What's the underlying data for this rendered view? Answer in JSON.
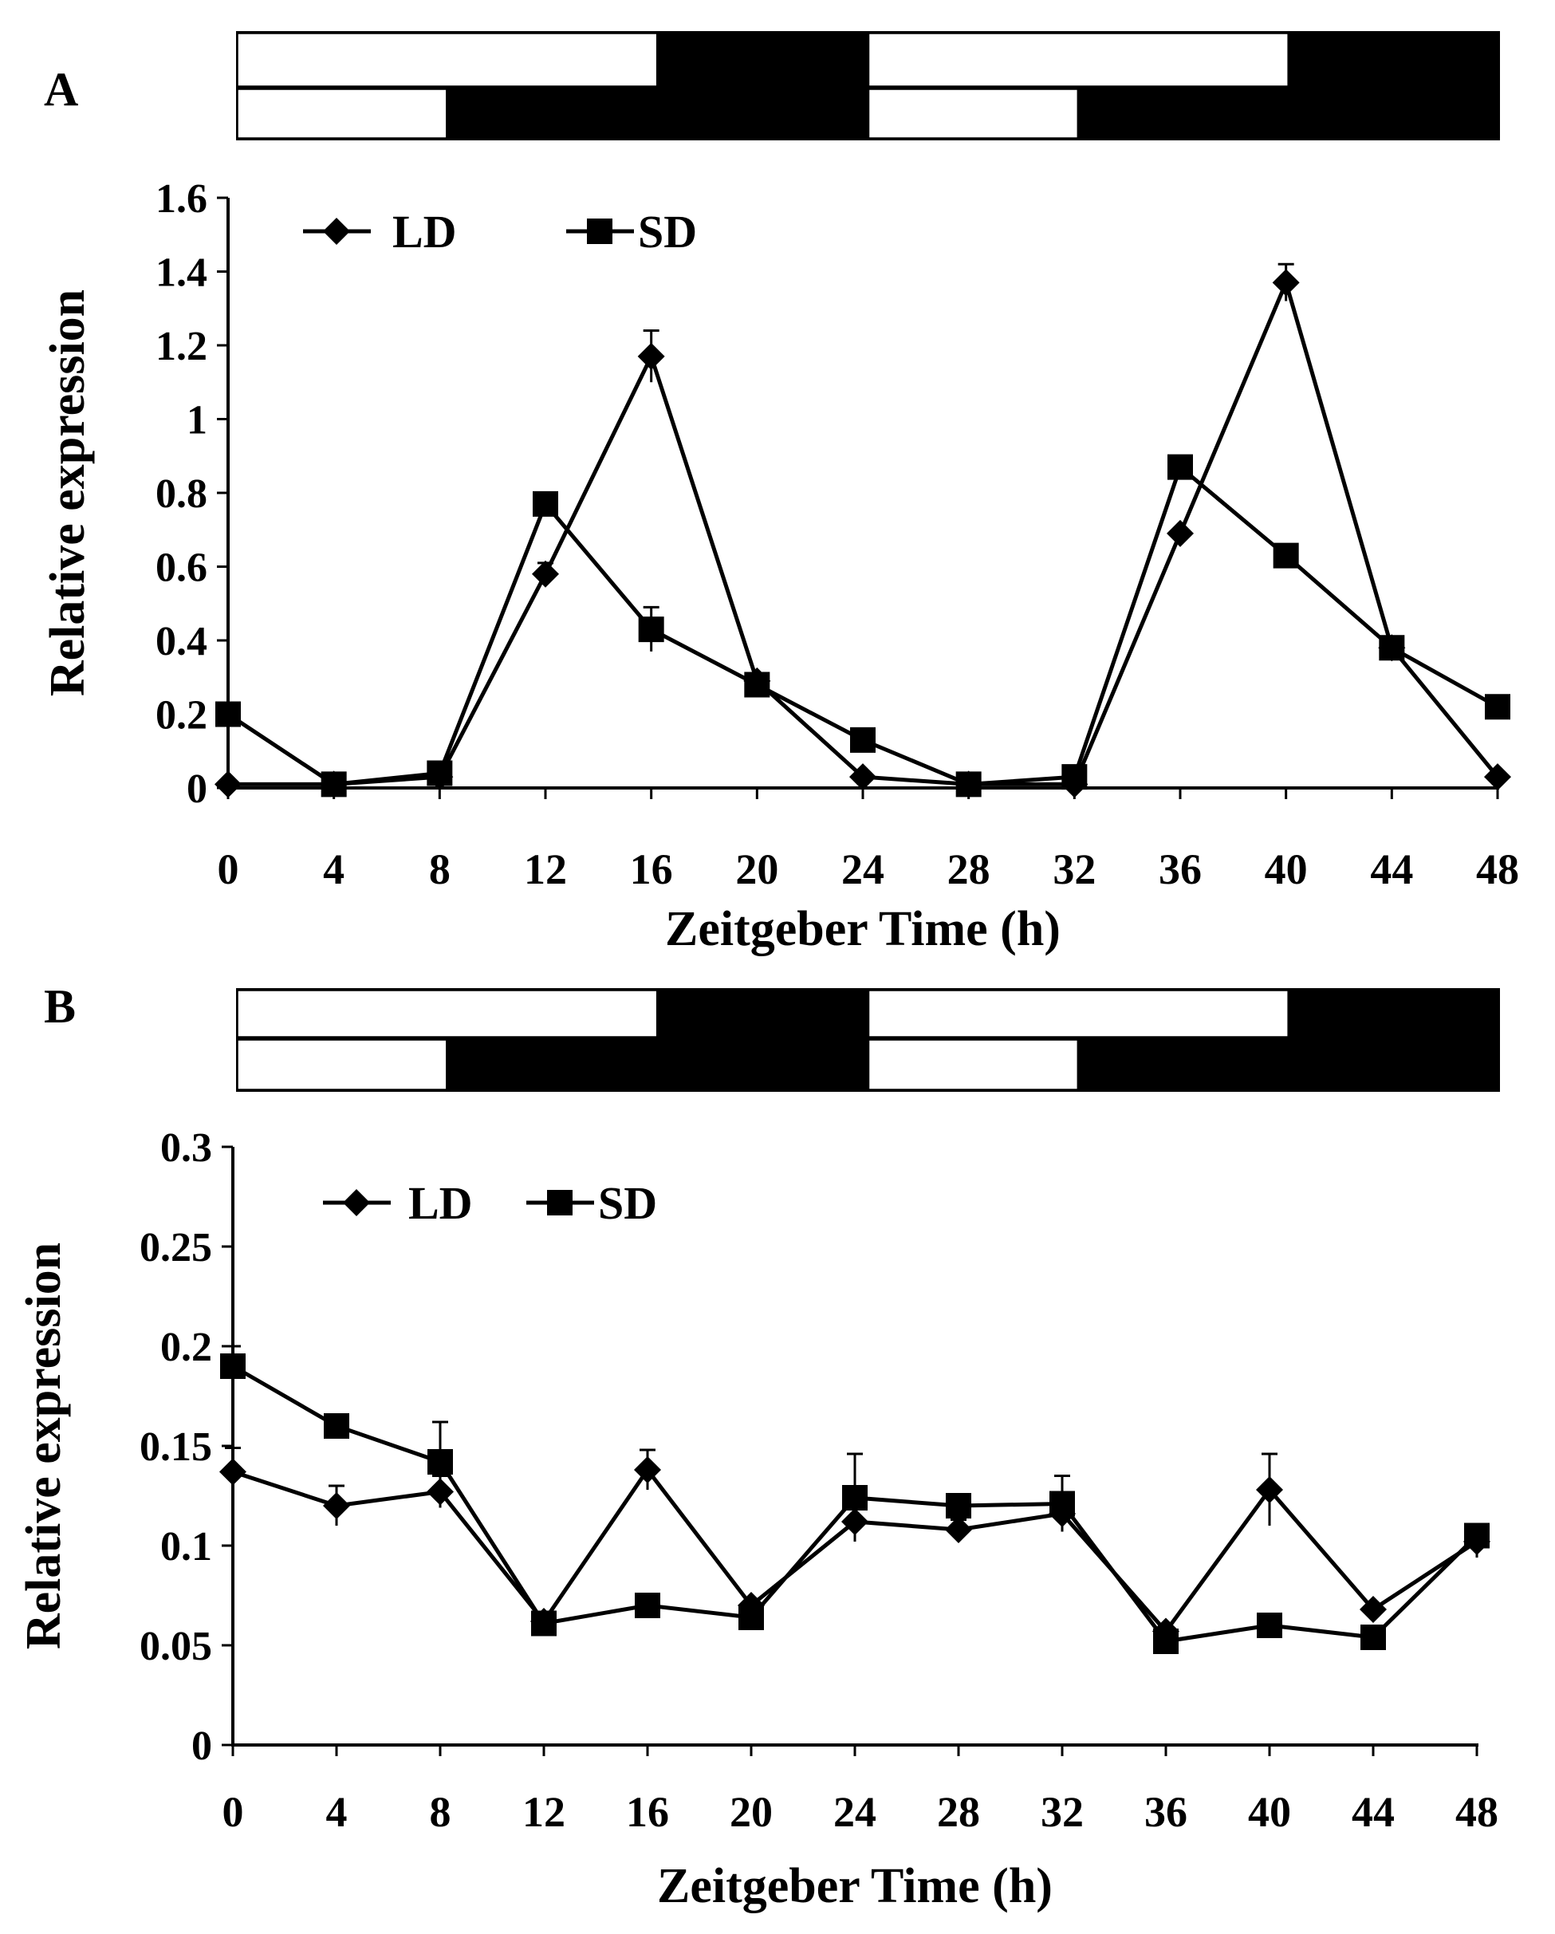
{
  "chart_data": [
    {
      "panel_label": "A",
      "type": "line",
      "xlabel": "Zeitgeber Time (h)",
      "ylabel": "Relative expression",
      "x": [
        0,
        4,
        8,
        12,
        16,
        20,
        24,
        28,
        32,
        36,
        40,
        44,
        48
      ],
      "xticks": [
        "0",
        "4",
        "8",
        "12",
        "16",
        "20",
        "24",
        "28",
        "32",
        "36",
        "40",
        "44",
        "48"
      ],
      "xlim": [
        0,
        48
      ],
      "ylim": [
        0,
        1.6
      ],
      "yticks": [
        "0",
        "0.2",
        "0.4",
        "0.6",
        "0.8",
        "1",
        "1.2",
        "1.4",
        "1.6"
      ],
      "series": [
        {
          "name": "LD",
          "marker": "diamond",
          "values": [
            0.01,
            0.01,
            0.03,
            0.58,
            1.17,
            0.29,
            0.03,
            0.01,
            0.01,
            0.69,
            1.37,
            0.38,
            0.03
          ],
          "errors": [
            0,
            0,
            0,
            0.03,
            0.07,
            0,
            0,
            0,
            0,
            0,
            0.05,
            0,
            0
          ]
        },
        {
          "name": "SD",
          "marker": "square",
          "values": [
            0.2,
            0.01,
            0.04,
            0.77,
            0.43,
            0.28,
            0.13,
            0.01,
            0.03,
            0.87,
            0.63,
            0.38,
            0.22
          ],
          "errors": [
            0,
            0,
            0,
            0,
            0.06,
            0,
            0,
            0,
            0,
            0,
            0,
            0,
            0
          ]
        }
      ],
      "photoperiod_bars": [
        {
          "name": "LD",
          "light_fraction": [
            [
              0,
              16
            ],
            [
              24,
              40
            ]
          ]
        },
        {
          "name": "SD",
          "light_fraction": [
            [
              0,
              8
            ],
            [
              24,
              32
            ]
          ]
        }
      ]
    },
    {
      "panel_label": "B",
      "type": "line",
      "xlabel": "Zeitgeber Time (h)",
      "ylabel": "Relative expression",
      "x": [
        0,
        4,
        8,
        12,
        16,
        20,
        24,
        28,
        32,
        36,
        40,
        44,
        48
      ],
      "xticks": [
        "0",
        "4",
        "8",
        "12",
        "16",
        "20",
        "24",
        "28",
        "32",
        "36",
        "40",
        "44",
        "48"
      ],
      "xlim": [
        0,
        48
      ],
      "ylim": [
        0,
        0.3
      ],
      "yticks": [
        "0",
        "0.05",
        "0.1",
        "0.15",
        "0.2",
        "0.25",
        "0.3"
      ],
      "series": [
        {
          "name": "LD",
          "marker": "diamond",
          "values": [
            0.137,
            0.12,
            0.127,
            0.062,
            0.138,
            0.07,
            0.112,
            0.108,
            0.116,
            0.057,
            0.128,
            0.068,
            0.102
          ],
          "errors": [
            0.012,
            0.01,
            0.008,
            0,
            0.01,
            0,
            0.01,
            0.005,
            0.008,
            0,
            0.018,
            0,
            0.008
          ]
        },
        {
          "name": "SD",
          "marker": "square",
          "values": [
            0.19,
            0.16,
            0.142,
            0.061,
            0.07,
            0.064,
            0.124,
            0.12,
            0.121,
            0.052,
            0.06,
            0.054,
            0.105
          ],
          "errors": [
            0.01,
            0,
            0.02,
            0,
            0,
            0,
            0.022,
            0,
            0.014,
            0,
            0,
            0,
            0
          ]
        }
      ],
      "photoperiod_bars": [
        {
          "name": "LD",
          "light_fraction": [
            [
              0,
              16
            ],
            [
              24,
              40
            ]
          ]
        },
        {
          "name": "SD",
          "light_fraction": [
            [
              0,
              8
            ],
            [
              24,
              32
            ]
          ]
        }
      ]
    }
  ]
}
